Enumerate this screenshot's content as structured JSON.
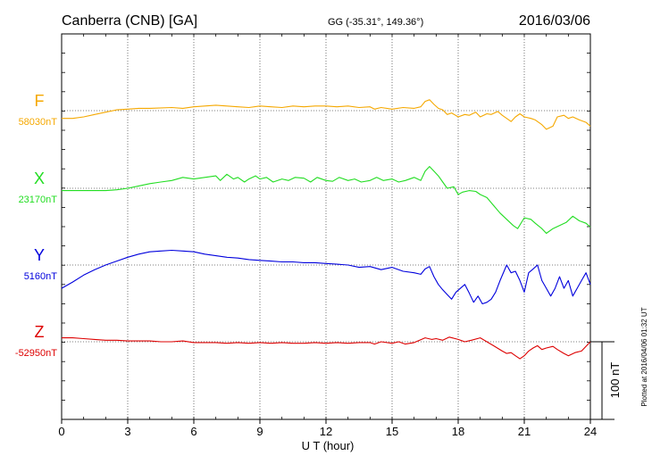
{
  "header": {
    "station": "Canberra (CNB)  [GA]",
    "coords": "GG (-35.31°, 149.36°)",
    "date": "2016/03/06"
  },
  "plotted_note": "Plotted at 2016/04/06 01:32 UT",
  "chart_data": {
    "type": "line",
    "xlabel": "U T (hour)",
    "xlim": [
      0,
      24
    ],
    "x_ticks": [
      "0",
      "3",
      "6",
      "9",
      "12",
      "15",
      "18",
      "21",
      "24"
    ],
    "grid": true,
    "scale_bar_label": "100 nT",
    "scale_bar_nT": 100,
    "series": [
      {
        "name": "F",
        "baseline_label": "58030nT",
        "baseline_nT": 58030,
        "color": "#f5a800",
        "points": [
          [
            0,
            -10
          ],
          [
            0.5,
            -10
          ],
          [
            1,
            -8
          ],
          [
            1.5,
            -5
          ],
          [
            2,
            -2
          ],
          [
            2.5,
            1
          ],
          [
            3,
            2
          ],
          [
            3.5,
            3
          ],
          [
            4,
            3
          ],
          [
            5,
            4
          ],
          [
            5.5,
            3
          ],
          [
            6,
            5
          ],
          [
            6.5,
            6
          ],
          [
            7,
            7
          ],
          [
            7.5,
            6
          ],
          [
            8,
            5
          ],
          [
            8.5,
            4
          ],
          [
            9,
            6
          ],
          [
            9.5,
            5
          ],
          [
            10,
            4
          ],
          [
            10.5,
            6
          ],
          [
            11,
            5
          ],
          [
            11.5,
            6
          ],
          [
            12,
            6
          ],
          [
            12.5,
            5
          ],
          [
            13,
            6
          ],
          [
            13.5,
            4
          ],
          [
            14,
            5
          ],
          [
            14.2,
            2
          ],
          [
            14.5,
            4
          ],
          [
            15,
            2
          ],
          [
            15.5,
            4
          ],
          [
            16,
            3
          ],
          [
            16.3,
            5
          ],
          [
            16.5,
            12
          ],
          [
            16.7,
            14
          ],
          [
            16.9,
            8
          ],
          [
            17.1,
            3
          ],
          [
            17.3,
            1
          ],
          [
            17.5,
            -5
          ],
          [
            17.7,
            -3
          ],
          [
            18,
            -8
          ],
          [
            18.3,
            -5
          ],
          [
            18.5,
            -6
          ],
          [
            18.8,
            -2
          ],
          [
            19,
            -8
          ],
          [
            19.3,
            -4
          ],
          [
            19.5,
            -5
          ],
          [
            19.8,
            -1
          ],
          [
            20,
            -6
          ],
          [
            20.2,
            -10
          ],
          [
            20.4,
            -14
          ],
          [
            20.6,
            -8
          ],
          [
            20.8,
            -4
          ],
          [
            21,
            -8
          ],
          [
            21.3,
            -10
          ],
          [
            21.5,
            -12
          ],
          [
            21.8,
            -18
          ],
          [
            22,
            -24
          ],
          [
            22.3,
            -20
          ],
          [
            22.5,
            -8
          ],
          [
            22.8,
            -6
          ],
          [
            23,
            -10
          ],
          [
            23.2,
            -8
          ],
          [
            23.5,
            -12
          ],
          [
            23.8,
            -15
          ],
          [
            24,
            -20
          ]
        ]
      },
      {
        "name": "X",
        "baseline_label": "23170nT",
        "baseline_nT": 23170,
        "color": "#22dd22",
        "points": [
          [
            0,
            -3
          ],
          [
            0.5,
            -3
          ],
          [
            1,
            -3
          ],
          [
            1.5,
            -3
          ],
          [
            2,
            -3
          ],
          [
            2.5,
            -2
          ],
          [
            3,
            0
          ],
          [
            3.5,
            3
          ],
          [
            4,
            6
          ],
          [
            4.5,
            8
          ],
          [
            5,
            10
          ],
          [
            5.5,
            14
          ],
          [
            6,
            12
          ],
          [
            6.5,
            14
          ],
          [
            7,
            16
          ],
          [
            7.2,
            10
          ],
          [
            7.5,
            18
          ],
          [
            7.8,
            12
          ],
          [
            8,
            14
          ],
          [
            8.3,
            8
          ],
          [
            8.5,
            12
          ],
          [
            8.8,
            16
          ],
          [
            9,
            12
          ],
          [
            9.3,
            14
          ],
          [
            9.6,
            8
          ],
          [
            10,
            12
          ],
          [
            10.3,
            10
          ],
          [
            10.6,
            14
          ],
          [
            11,
            13
          ],
          [
            11.3,
            8
          ],
          [
            11.6,
            14
          ],
          [
            12,
            10
          ],
          [
            12.3,
            9
          ],
          [
            12.6,
            14
          ],
          [
            13,
            10
          ],
          [
            13.3,
            12
          ],
          [
            13.6,
            8
          ],
          [
            14,
            10
          ],
          [
            14.3,
            14
          ],
          [
            14.6,
            10
          ],
          [
            15,
            12
          ],
          [
            15.3,
            8
          ],
          [
            15.6,
            10
          ],
          [
            16,
            14
          ],
          [
            16.3,
            10
          ],
          [
            16.5,
            22
          ],
          [
            16.7,
            28
          ],
          [
            16.9,
            22
          ],
          [
            17.1,
            16
          ],
          [
            17.3,
            8
          ],
          [
            17.5,
            0
          ],
          [
            17.8,
            2
          ],
          [
            18,
            -8
          ],
          [
            18.2,
            -5
          ],
          [
            18.5,
            -3
          ],
          [
            18.8,
            -4
          ],
          [
            19,
            -8
          ],
          [
            19.3,
            -12
          ],
          [
            19.6,
            -22
          ],
          [
            19.9,
            -32
          ],
          [
            20.2,
            -40
          ],
          [
            20.5,
            -48
          ],
          [
            20.7,
            -52
          ],
          [
            21,
            -38
          ],
          [
            21.3,
            -40
          ],
          [
            21.5,
            -45
          ],
          [
            21.8,
            -52
          ],
          [
            22,
            -58
          ],
          [
            22.3,
            -52
          ],
          [
            22.6,
            -48
          ],
          [
            22.9,
            -44
          ],
          [
            23.2,
            -36
          ],
          [
            23.5,
            -42
          ],
          [
            23.8,
            -45
          ],
          [
            24,
            -50
          ]
        ]
      },
      {
        "name": "Y",
        "baseline_label": "5160nT",
        "baseline_nT": 5160,
        "color": "#0000dd",
        "points": [
          [
            0,
            -30
          ],
          [
            0.5,
            -22
          ],
          [
            1,
            -13
          ],
          [
            1.5,
            -6
          ],
          [
            2,
            0
          ],
          [
            2.5,
            5
          ],
          [
            3,
            10
          ],
          [
            3.5,
            14
          ],
          [
            4,
            17
          ],
          [
            4.5,
            18
          ],
          [
            5,
            19
          ],
          [
            5.5,
            18
          ],
          [
            6,
            17
          ],
          [
            6.5,
            14
          ],
          [
            7,
            12
          ],
          [
            7.5,
            10
          ],
          [
            8,
            9
          ],
          [
            8.5,
            7
          ],
          [
            9,
            6
          ],
          [
            9.5,
            5
          ],
          [
            10,
            4
          ],
          [
            10.5,
            4
          ],
          [
            11,
            3
          ],
          [
            11.5,
            3
          ],
          [
            12,
            2
          ],
          [
            12.5,
            1
          ],
          [
            13,
            0
          ],
          [
            13.5,
            -3
          ],
          [
            14,
            -2
          ],
          [
            14.5,
            -6
          ],
          [
            15,
            -3
          ],
          [
            15.5,
            -8
          ],
          [
            16,
            -10
          ],
          [
            16.3,
            -12
          ],
          [
            16.5,
            -5
          ],
          [
            16.7,
            -2
          ],
          [
            16.9,
            -15
          ],
          [
            17.1,
            -25
          ],
          [
            17.3,
            -32
          ],
          [
            17.5,
            -38
          ],
          [
            17.7,
            -44
          ],
          [
            17.9,
            -35
          ],
          [
            18.1,
            -30
          ],
          [
            18.3,
            -25
          ],
          [
            18.5,
            -36
          ],
          [
            18.7,
            -48
          ],
          [
            18.9,
            -40
          ],
          [
            19.1,
            -50
          ],
          [
            19.3,
            -48
          ],
          [
            19.5,
            -44
          ],
          [
            19.7,
            -35
          ],
          [
            19.9,
            -20
          ],
          [
            20.2,
            0
          ],
          [
            20.4,
            -10
          ],
          [
            20.6,
            -8
          ],
          [
            20.8,
            -20
          ],
          [
            21,
            -35
          ],
          [
            21.2,
            -10
          ],
          [
            21.4,
            -5
          ],
          [
            21.6,
            0
          ],
          [
            21.8,
            -20
          ],
          [
            22,
            -30
          ],
          [
            22.2,
            -40
          ],
          [
            22.4,
            -30
          ],
          [
            22.6,
            -15
          ],
          [
            22.8,
            -30
          ],
          [
            23,
            -20
          ],
          [
            23.2,
            -40
          ],
          [
            23.4,
            -30
          ],
          [
            23.6,
            -20
          ],
          [
            23.8,
            -10
          ],
          [
            24,
            -25
          ]
        ]
      },
      {
        "name": "Z",
        "baseline_label": "-52950nT",
        "baseline_nT": -52950,
        "color": "#dd0000",
        "points": [
          [
            0,
            5
          ],
          [
            0.5,
            5
          ],
          [
            1,
            4
          ],
          [
            1.5,
            3
          ],
          [
            2,
            2
          ],
          [
            2.5,
            2
          ],
          [
            3,
            1
          ],
          [
            3.5,
            1
          ],
          [
            4,
            1
          ],
          [
            4.5,
            0
          ],
          [
            5,
            0
          ],
          [
            5.5,
            1
          ],
          [
            6,
            -1
          ],
          [
            6.5,
            -1
          ],
          [
            7,
            -1
          ],
          [
            7.5,
            -2
          ],
          [
            8,
            -1
          ],
          [
            8.5,
            -2
          ],
          [
            9,
            -1
          ],
          [
            9.5,
            -2
          ],
          [
            10,
            -1
          ],
          [
            10.5,
            -2
          ],
          [
            11,
            -2
          ],
          [
            11.5,
            -1
          ],
          [
            12,
            -2
          ],
          [
            12.5,
            -1
          ],
          [
            13,
            -2
          ],
          [
            13.5,
            -1
          ],
          [
            14,
            -1
          ],
          [
            14.2,
            -3
          ],
          [
            14.5,
            0
          ],
          [
            15,
            -2
          ],
          [
            15.3,
            0
          ],
          [
            15.6,
            -3
          ],
          [
            16,
            -1
          ],
          [
            16.5,
            5
          ],
          [
            16.8,
            3
          ],
          [
            17,
            4
          ],
          [
            17.3,
            2
          ],
          [
            17.6,
            6
          ],
          [
            18,
            3
          ],
          [
            18.3,
            0
          ],
          [
            18.6,
            2
          ],
          [
            19,
            5
          ],
          [
            19.3,
            0
          ],
          [
            19.6,
            -5
          ],
          [
            20,
            -12
          ],
          [
            20.2,
            -15
          ],
          [
            20.4,
            -14
          ],
          [
            20.6,
            -18
          ],
          [
            20.8,
            -22
          ],
          [
            21,
            -18
          ],
          [
            21.2,
            -12
          ],
          [
            21.4,
            -8
          ],
          [
            21.6,
            -5
          ],
          [
            21.8,
            -10
          ],
          [
            22,
            -8
          ],
          [
            22.3,
            -6
          ],
          [
            22.5,
            -10
          ],
          [
            22.8,
            -15
          ],
          [
            23,
            -18
          ],
          [
            23.3,
            -14
          ],
          [
            23.6,
            -12
          ],
          [
            24,
            0
          ]
        ]
      }
    ]
  }
}
